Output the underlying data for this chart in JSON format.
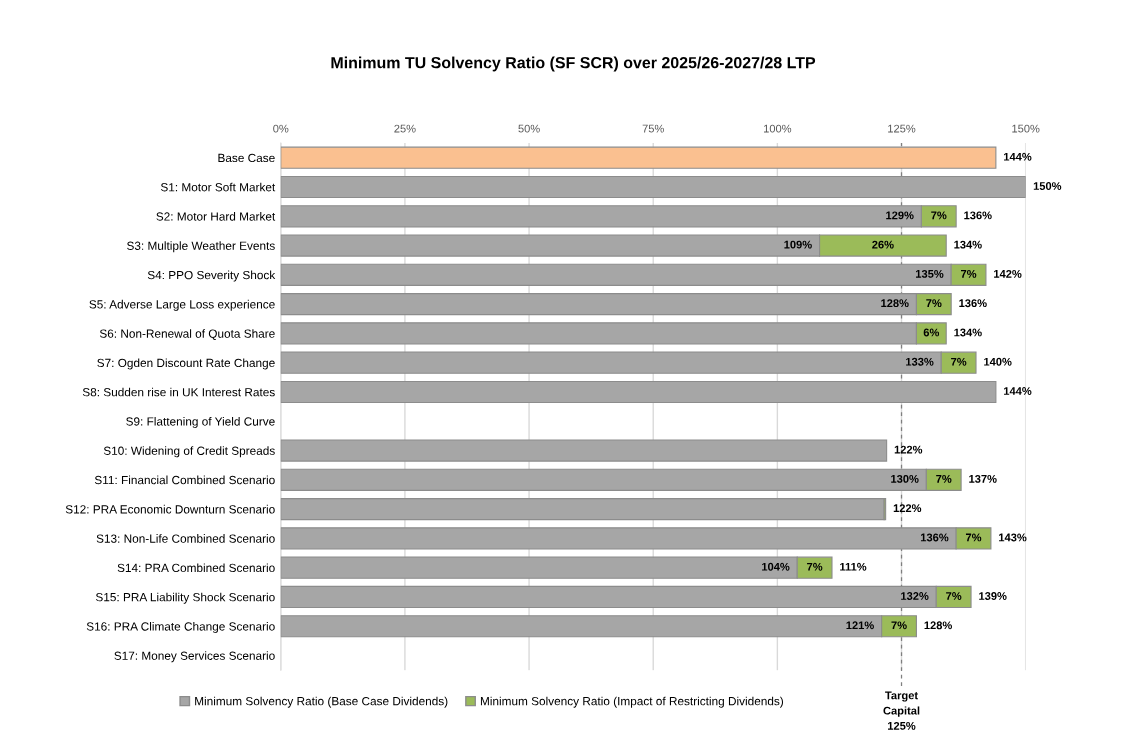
{
  "chart_data": {
    "type": "bar",
    "orientation": "horizontal",
    "stacked": true,
    "title": "Minimum TU Solvency Ratio (SF SCR) over 2025/26-2027/28 LTP",
    "categories": [
      "Base Case",
      "S1: Motor Soft Market",
      "S2: Motor Hard Market",
      "S3: Multiple Weather Events",
      "S4: PPO Severity Shock",
      "S5: Adverse Large Loss experience",
      "S6: Non-Renewal of Quota Share",
      "S7: Ogden Discount Rate Change",
      "S8: Sudden rise in UK Interest Rates",
      "S9: Flattening of Yield Curve",
      "S10: Widening of Credit Spreads",
      "S11: Financial Combined Scenario",
      "S12: PRA Economic Downturn Scenario",
      "S13: Non-Life Combined Scenario",
      "S14: PRA Combined Scenario",
      "S15: PRA Liability Shock Scenario",
      "S16: PRA Climate Change Scenario",
      "S17: Money Services Scenario"
    ],
    "series": [
      {
        "name": "Minimum Solvency Ratio (Base Case Dividends)",
        "color": "#a6a6a6",
        "colors": [
          "#fac090",
          "#a6a6a6",
          "#a6a6a6",
          "#a6a6a6",
          "#a6a6a6",
          "#a6a6a6",
          "#a6a6a6",
          "#a6a6a6",
          "#a6a6a6",
          "#a6a6a6",
          "#a6a6a6",
          "#a6a6a6",
          "#a6a6a6",
          "#a6a6a6",
          "#a6a6a6",
          "#a6a6a6",
          "#a6a6a6",
          "#a6a6a6"
        ],
        "values": [
          144,
          150,
          129,
          108.5,
          135,
          128,
          128,
          133,
          144,
          null,
          122,
          130,
          121.5,
          136,
          104,
          132,
          121,
          null
        ],
        "value_labels": [
          null,
          null,
          "129%",
          "109%",
          "135%",
          "128%",
          null,
          "133%",
          null,
          null,
          null,
          "130%",
          null,
          "136%",
          "104%",
          "132%",
          "121%",
          null
        ]
      },
      {
        "name": "Minimum Solvency Ratio (Impact of Restricting Dividends)",
        "color": "#9bbb59",
        "values": [
          null,
          null,
          7,
          25.5,
          7,
          7,
          6,
          7,
          null,
          null,
          null,
          7,
          0.3,
          7,
          7,
          7,
          7,
          null
        ],
        "value_labels": [
          null,
          null,
          "7%",
          "26%",
          "7%",
          "7%",
          "6%",
          "7%",
          null,
          null,
          null,
          "7%",
          null,
          "7%",
          "7%",
          "7%",
          "7%",
          null
        ]
      }
    ],
    "totals": [
      "144%",
      "150%",
      "136%",
      "134%",
      "142%",
      "136%",
      "134%",
      "140%",
      "144%",
      null,
      "122%",
      "137%",
      "122%",
      "143%",
      "111%",
      "139%",
      "128%",
      null
    ],
    "xlim": [
      0,
      150
    ],
    "xticks": [
      {
        "value": 0,
        "label": "0%"
      },
      {
        "value": 25,
        "label": "25%"
      },
      {
        "value": 50,
        "label": "50%"
      },
      {
        "value": 75,
        "label": "75%"
      },
      {
        "value": 100,
        "label": "100%"
      },
      {
        "value": 125,
        "label": "125%"
      },
      {
        "value": 150,
        "label": "150%"
      }
    ],
    "grid": "x",
    "legend": "bottom",
    "ref_lines": [
      {
        "axis": "x",
        "value": 125,
        "label": "Target\nCapital\n125%",
        "color": "#7f7f7f",
        "line_style": "dashed"
      }
    ]
  }
}
